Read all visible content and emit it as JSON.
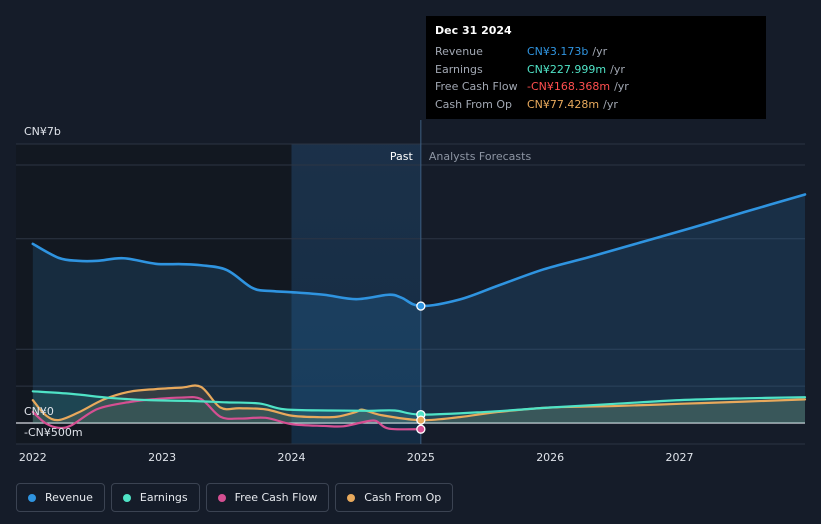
{
  "chart_data": {
    "type": "line",
    "title": "",
    "xlabel": "",
    "ylabel": "",
    "ylim": [
      -500,
      7000
    ],
    "y_unit": "CN¥ millions",
    "y_tick_labels": [
      {
        "value": 7000,
        "label": "CN¥7b"
      },
      {
        "value": 0,
        "label": "CN¥0"
      },
      {
        "value": -500,
        "label": "-CN¥500m"
      }
    ],
    "x_range": [
      2021.87,
      2027.97
    ],
    "x_ticks": [
      {
        "value": 2022,
        "label": "2022"
      },
      {
        "value": 2023,
        "label": "2023"
      },
      {
        "value": 2024,
        "label": "2024"
      },
      {
        "value": 2025,
        "label": "2025"
      },
      {
        "value": 2026,
        "label": "2026"
      },
      {
        "value": 2027,
        "label": "2027"
      }
    ],
    "past_label": "Past",
    "forecast_label": "Analysts Forecasts",
    "divider_x": 2025.0,
    "highlight_start": 2024.0,
    "series": [
      {
        "name": "Revenue",
        "color": "#2f94e0",
        "area": true,
        "points": [
          [
            2022.0,
            4860
          ],
          [
            2022.2,
            4480
          ],
          [
            2022.35,
            4400
          ],
          [
            2022.5,
            4400
          ],
          [
            2022.7,
            4470
          ],
          [
            2022.95,
            4320
          ],
          [
            2023.15,
            4310
          ],
          [
            2023.3,
            4280
          ],
          [
            2023.5,
            4150
          ],
          [
            2023.7,
            3660
          ],
          [
            2023.85,
            3580
          ],
          [
            2024.0,
            3550
          ],
          [
            2024.25,
            3480
          ],
          [
            2024.5,
            3360
          ],
          [
            2024.75,
            3480
          ],
          [
            2024.85,
            3400
          ],
          [
            2025.0,
            3173
          ],
          [
            2025.3,
            3350
          ],
          [
            2025.6,
            3730
          ],
          [
            2025.95,
            4170
          ],
          [
            2026.3,
            4500
          ],
          [
            2026.7,
            4900
          ],
          [
            2027.1,
            5300
          ],
          [
            2027.5,
            5720
          ],
          [
            2027.97,
            6200
          ]
        ]
      },
      {
        "name": "Earnings",
        "color": "#4fe3c6",
        "area": true,
        "points": [
          [
            2022.0,
            860
          ],
          [
            2022.3,
            790
          ],
          [
            2022.6,
            680
          ],
          [
            2022.9,
            620
          ],
          [
            2023.2,
            600
          ],
          [
            2023.5,
            560
          ],
          [
            2023.75,
            530
          ],
          [
            2023.95,
            370
          ],
          [
            2024.3,
            340
          ],
          [
            2024.6,
            330
          ],
          [
            2024.8,
            340
          ],
          [
            2025.0,
            228
          ],
          [
            2025.5,
            300
          ],
          [
            2026.0,
            420
          ],
          [
            2026.5,
            520
          ],
          [
            2027.0,
            620
          ],
          [
            2027.5,
            670
          ],
          [
            2027.97,
            700
          ]
        ]
      },
      {
        "name": "Free Cash Flow",
        "color": "#d54f92",
        "area": false,
        "points": [
          [
            2022.0,
            300
          ],
          [
            2022.1,
            -10
          ],
          [
            2022.2,
            -130
          ],
          [
            2022.3,
            -60
          ],
          [
            2022.5,
            380
          ],
          [
            2022.75,
            570
          ],
          [
            2022.95,
            650
          ],
          [
            2023.15,
            690
          ],
          [
            2023.3,
            650
          ],
          [
            2023.45,
            170
          ],
          [
            2023.6,
            120
          ],
          [
            2023.8,
            140
          ],
          [
            2024.0,
            -30
          ],
          [
            2024.25,
            -80
          ],
          [
            2024.4,
            -90
          ],
          [
            2024.55,
            20
          ],
          [
            2024.65,
            60
          ],
          [
            2024.75,
            -150
          ],
          [
            2025.0,
            -168
          ]
        ]
      },
      {
        "name": "Cash From Op",
        "color": "#e8a95c",
        "area": true,
        "points": [
          [
            2022.0,
            620
          ],
          [
            2022.1,
            210
          ],
          [
            2022.2,
            80
          ],
          [
            2022.35,
            280
          ],
          [
            2022.55,
            640
          ],
          [
            2022.75,
            850
          ],
          [
            2022.95,
            920
          ],
          [
            2023.15,
            960
          ],
          [
            2023.3,
            980
          ],
          [
            2023.45,
            420
          ],
          [
            2023.6,
            400
          ],
          [
            2023.8,
            370
          ],
          [
            2024.0,
            200
          ],
          [
            2024.2,
            160
          ],
          [
            2024.35,
            170
          ],
          [
            2024.5,
            300
          ],
          [
            2024.55,
            360
          ],
          [
            2024.7,
            210
          ],
          [
            2025.0,
            77
          ],
          [
            2025.3,
            160
          ],
          [
            2025.6,
            300
          ],
          [
            2026.0,
            420
          ],
          [
            2026.5,
            460
          ],
          [
            2027.0,
            520
          ],
          [
            2027.5,
            580
          ],
          [
            2027.97,
            640
          ]
        ]
      }
    ],
    "markers": [
      {
        "series": "Revenue",
        "x": 2025.0,
        "y": 3173
      },
      {
        "series": "Earnings",
        "x": 2025.0,
        "y": 228
      },
      {
        "series": "Cash From Op",
        "x": 2025.0,
        "y": 77
      },
      {
        "series": "Free Cash Flow",
        "x": 2025.0,
        "y": -168
      }
    ]
  },
  "tooltip": {
    "date": "Dec 31 2024",
    "rows": [
      {
        "label": "Revenue",
        "value": "CN¥3.173b",
        "unit": "/yr",
        "color": "#2f94e0"
      },
      {
        "label": "Earnings",
        "value": "CN¥227.999m",
        "unit": "/yr",
        "color": "#4fe3c6"
      },
      {
        "label": "Free Cash Flow",
        "value": "-CN¥168.368m",
        "unit": "/yr",
        "color": "#ff4f4f"
      },
      {
        "label": "Cash From Op",
        "value": "CN¥77.428m",
        "unit": "/yr",
        "color": "#e8a95c"
      }
    ]
  },
  "legend": [
    {
      "label": "Revenue",
      "color": "#2f94e0"
    },
    {
      "label": "Earnings",
      "color": "#4fe3c6"
    },
    {
      "label": "Free Cash Flow",
      "color": "#d54f92"
    },
    {
      "label": "Cash From Op",
      "color": "#e8a95c"
    }
  ]
}
